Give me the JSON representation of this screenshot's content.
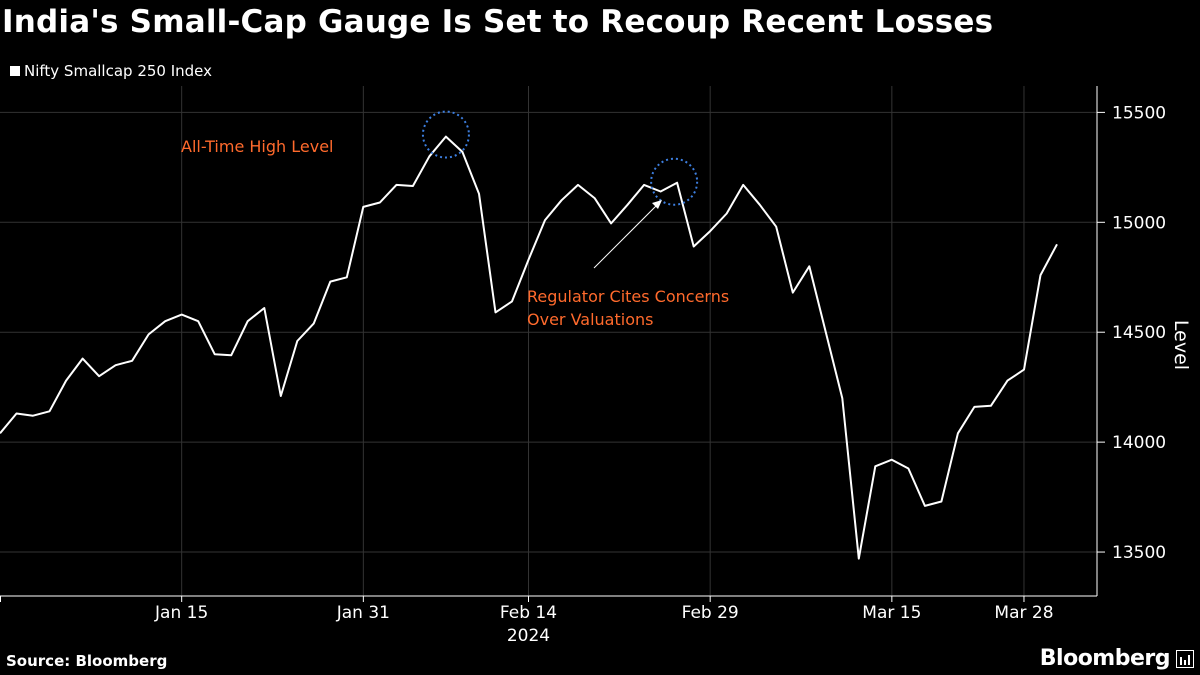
{
  "header": {
    "title": "India's Small-Cap Gauge Is Set to Recoup Recent Losses"
  },
  "legend": {
    "label": "Nifty Smallcap 250 Index",
    "color": "#ffffff"
  },
  "footer": {
    "source": "Source: Bloomberg",
    "brand": "Bloomberg"
  },
  "chart_data": {
    "type": "line",
    "title": "India's Small-Cap Gauge Is Set to Recoup Recent Losses",
    "xlabel": "2024",
    "ylabel": "Level",
    "ylim": [
      13300,
      15620
    ],
    "xlim": [
      0,
      66
    ],
    "yticks": [
      13500,
      14000,
      14500,
      15000,
      15500
    ],
    "grid": true,
    "x_tick_labels": [
      {
        "x": 11,
        "label": "Jan 15"
      },
      {
        "x": 22,
        "label": "Jan 31"
      },
      {
        "x": 32,
        "label": "Feb 14"
      },
      {
        "x": 43,
        "label": "Feb 29"
      },
      {
        "x": 54,
        "label": "Mar 15"
      },
      {
        "x": 62,
        "label": "Mar 28"
      }
    ],
    "x_year_label": {
      "x": 32,
      "label": "2024"
    },
    "series": [
      {
        "name": "Nifty Smallcap 250 Index",
        "color": "#ffffff",
        "x": [
          0,
          1,
          2,
          3,
          4,
          5,
          6,
          7,
          8,
          9,
          10,
          11,
          12,
          13,
          14,
          15,
          16,
          17,
          18,
          19,
          20,
          21,
          22,
          23,
          24,
          25,
          26,
          27,
          28,
          29,
          30,
          31,
          32,
          33,
          34,
          35,
          36,
          37,
          38,
          39,
          40,
          41,
          42,
          43,
          44,
          45,
          46,
          47,
          48,
          49,
          50,
          51,
          52,
          53,
          54,
          55,
          56,
          57,
          58,
          59,
          60,
          61,
          62,
          63,
          64
        ],
        "values": [
          14040,
          14130,
          14120,
          14140,
          14280,
          14380,
          14300,
          14350,
          14370,
          14490,
          14550,
          14580,
          14550,
          14400,
          14395,
          14550,
          14610,
          14210,
          14460,
          14540,
          14730,
          14750,
          15070,
          15090,
          15170,
          15165,
          15300,
          15390,
          15320,
          15130,
          14590,
          14640,
          14830,
          15010,
          15100,
          15170,
          15110,
          14995,
          15080,
          15170,
          15140,
          15180,
          14890,
          14960,
          15040,
          15170,
          15080,
          14980,
          14680,
          14800,
          14500,
          14200,
          13470,
          13890,
          13920,
          13880,
          13710,
          13730,
          14040,
          14160,
          14165,
          14280,
          14330,
          14760,
          14900
        ]
      }
    ],
    "annotations": [
      {
        "text": "All-Time High Level",
        "x": 27,
        "y": 15390,
        "marker": "dotted-circle",
        "color": "#ff6a2c"
      },
      {
        "text": "Regulator Cites Concerns",
        "text2": "Over Valuations",
        "x": 41,
        "y": 15180,
        "marker": "dotted-circle",
        "arrow": true,
        "color": "#ff6a2c"
      }
    ],
    "colors": {
      "annotation": "#ff6a2c",
      "marker": "#3d7fe0",
      "grid": "#333333"
    }
  }
}
